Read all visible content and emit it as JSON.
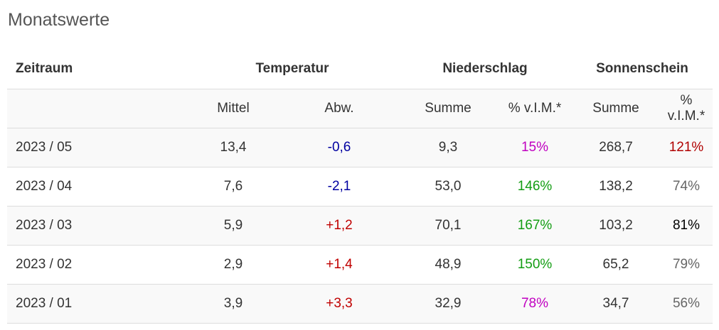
{
  "title": "Monatswerte",
  "headers": {
    "zeitraum": "Zeitraum",
    "temperatur": "Temperatur",
    "niederschlag": "Niederschlag",
    "sonnenschein": "Sonnenschein"
  },
  "subheaders": {
    "mittel": "Mittel",
    "abw": "Abw.",
    "summe_n": "Summe",
    "vim_n": "% v.I.M.*",
    "summe_s": "Summe",
    "vim_s": "% v.I.M.*"
  },
  "rows": [
    {
      "zeitraum": "2023 / 05",
      "mittel": "13,4",
      "abw": "-0,6",
      "n_summe": "9,3",
      "n_vim": "15%",
      "s_summe": "268,7",
      "s_vim": "121%"
    },
    {
      "zeitraum": "2023 / 04",
      "mittel": "7,6",
      "abw": "-2,1",
      "n_summe": "53,0",
      "n_vim": "146%",
      "s_summe": "138,2",
      "s_vim": "74%"
    },
    {
      "zeitraum": "2023 / 03",
      "mittel": "5,9",
      "abw": "+1,2",
      "n_summe": "70,1",
      "n_vim": "167%",
      "s_summe": "103,2",
      "s_vim": "81%"
    },
    {
      "zeitraum": "2023 / 02",
      "mittel": "2,9",
      "abw": "+1,4",
      "n_summe": "48,9",
      "n_vim": "150%",
      "s_summe": "65,2",
      "s_vim": "79%"
    },
    {
      "zeitraum": "2023 / 01",
      "mittel": "3,9",
      "abw": "+3,3",
      "n_summe": "32,9",
      "n_vim": "78%",
      "s_summe": "34,7",
      "s_vim": "56%"
    }
  ],
  "colors": {
    "link": "#2a89bf",
    "negative_deviation": "#0000a0",
    "positive_deviation": "#c00000",
    "low_precip": "#c000c0",
    "high_precip": "#139d13",
    "high_sun": "#b00000",
    "normal_sun": "#666666",
    "neutral_sun": "#000000"
  }
}
